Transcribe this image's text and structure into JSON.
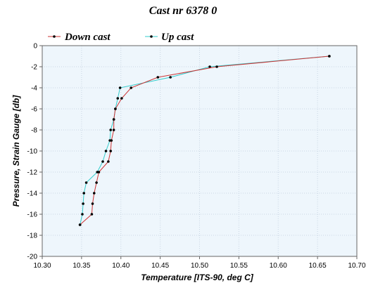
{
  "chart_data": {
    "type": "line",
    "title": "Cast nr 6378 0",
    "xlabel": "Temperature [ITS-90, deg C]",
    "ylabel": "Pressure, Strain Gauge [db]",
    "xlim": [
      10.3,
      10.7
    ],
    "ylim": [
      -20,
      0
    ],
    "xticks": [
      "10.30",
      "10.35",
      "10.40",
      "10.45",
      "10.50",
      "10.55",
      "10.60",
      "10.65",
      "10.70"
    ],
    "yticks": [
      "0",
      "-2",
      "-4",
      "-6",
      "-8",
      "-10",
      "-12",
      "-14",
      "-16",
      "-18",
      "-20"
    ],
    "grid": true,
    "legend_position": "top",
    "series": [
      {
        "name": "Down cast",
        "color": "#cc3333",
        "points": [
          [
            10.665,
            -1
          ],
          [
            10.522,
            -2
          ],
          [
            10.447,
            -3
          ],
          [
            10.413,
            -4
          ],
          [
            10.401,
            -5
          ],
          [
            10.393,
            -6
          ],
          [
            10.391,
            -7
          ],
          [
            10.391,
            -8
          ],
          [
            10.388,
            -9
          ],
          [
            10.387,
            -10
          ],
          [
            10.384,
            -11
          ],
          [
            10.372,
            -12
          ],
          [
            10.369,
            -13
          ],
          [
            10.366,
            -14
          ],
          [
            10.364,
            -15
          ],
          [
            10.363,
            -16
          ],
          [
            10.348,
            -17
          ]
        ]
      },
      {
        "name": "Up cast",
        "color": "#33cccc",
        "points": [
          [
            10.665,
            -1
          ],
          [
            10.513,
            -2
          ],
          [
            10.463,
            -3
          ],
          [
            10.399,
            -4
          ],
          [
            10.396,
            -5
          ],
          [
            10.393,
            -6
          ],
          [
            10.391,
            -7
          ],
          [
            10.387,
            -8
          ],
          [
            10.386,
            -9
          ],
          [
            10.381,
            -10
          ],
          [
            10.377,
            -11
          ],
          [
            10.37,
            -12
          ],
          [
            10.356,
            -13
          ],
          [
            10.353,
            -14
          ],
          [
            10.352,
            -15
          ],
          [
            10.351,
            -16
          ],
          [
            10.348,
            -17
          ]
        ]
      }
    ]
  }
}
